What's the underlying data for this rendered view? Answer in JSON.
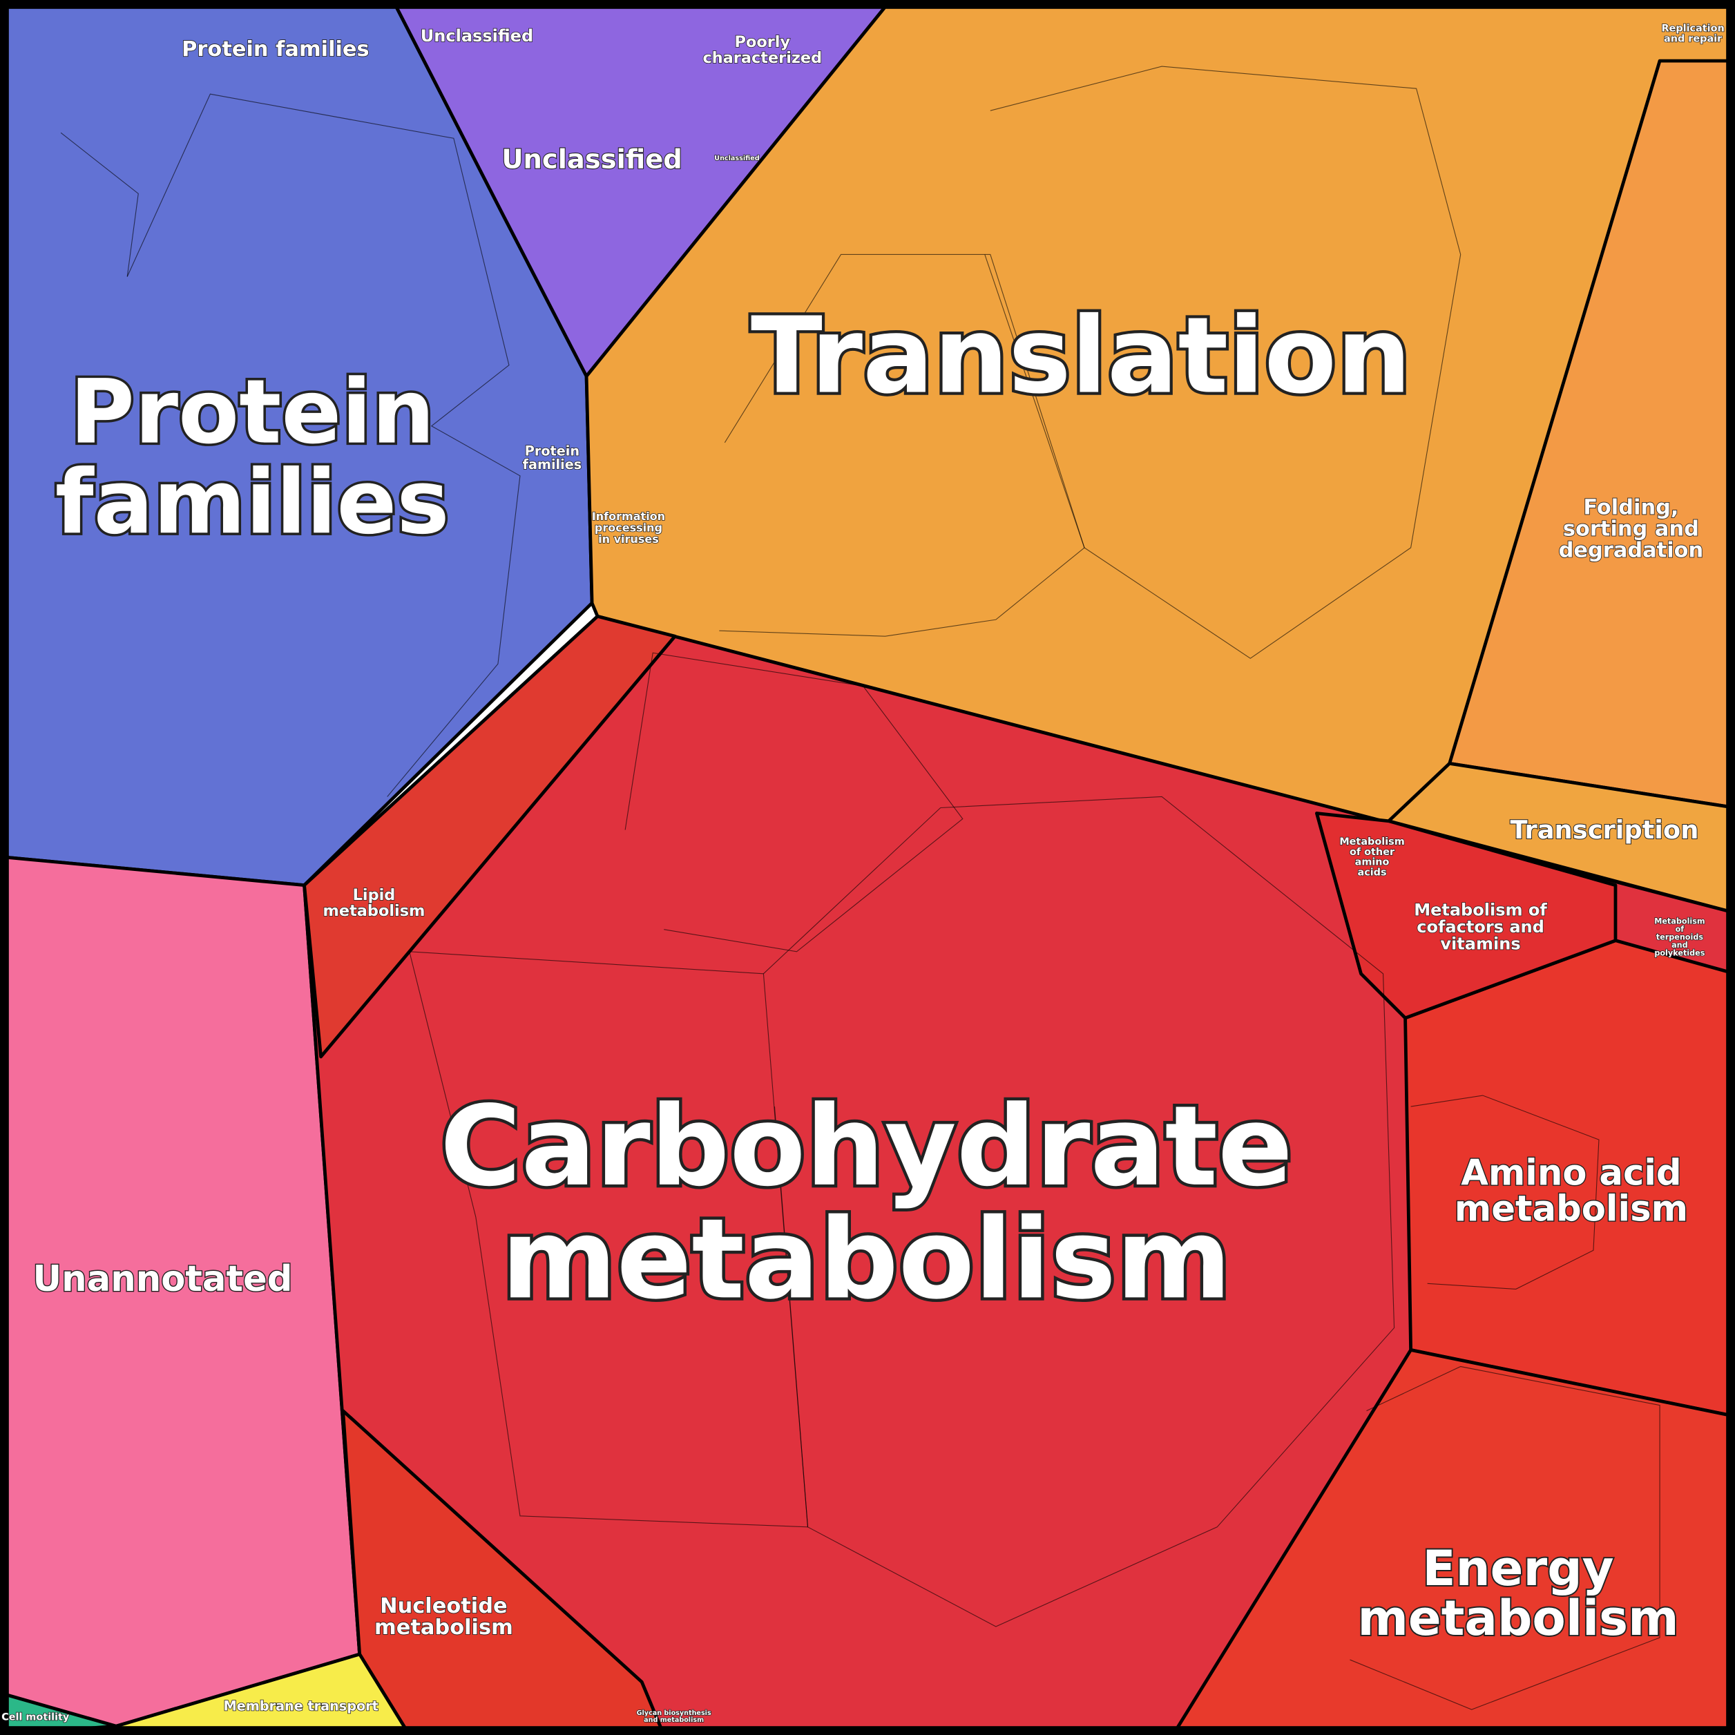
{
  "regions": [
    {
      "lines": [
        "Protein families"
      ]
    },
    {
      "lines": [
        "Protein",
        "families"
      ]
    },
    {
      "lines": [
        "Protein",
        "families"
      ]
    },
    {
      "lines": [
        "Unclassified"
      ]
    },
    {
      "lines": [
        "Unclassified"
      ]
    },
    {
      "lines": [
        "Poorly",
        "characterized"
      ]
    },
    {
      "lines": [
        "Unclassified"
      ]
    },
    {
      "lines": [
        "Translation"
      ]
    },
    {
      "lines": [
        "Information",
        "processing",
        "in viruses"
      ]
    },
    {
      "lines": [
        "Folding,",
        "sorting and",
        "degradation"
      ]
    },
    {
      "lines": [
        "Replication",
        "and repair"
      ]
    },
    {
      "lines": [
        "Transcription"
      ]
    },
    {
      "lines": [
        "Carbohydrate",
        "metabolism"
      ]
    },
    {
      "lines": [
        "Amino acid",
        "metabolism"
      ]
    },
    {
      "lines": [
        "Energy",
        "metabolism"
      ]
    },
    {
      "lines": [
        "Metabolism of",
        "cofactors and",
        "vitamins"
      ]
    },
    {
      "lines": [
        "Metabolism",
        "of other",
        "amino",
        "acids"
      ]
    },
    {
      "lines": [
        "Metabolism",
        "of",
        "terpenoids",
        "and",
        "polyketides"
      ]
    },
    {
      "lines": [
        "Lipid",
        "metabolism"
      ]
    },
    {
      "lines": [
        "Nucleotide",
        "metabolism"
      ]
    },
    {
      "lines": [
        "Unannotated"
      ]
    },
    {
      "lines": [
        "Membrane transport"
      ]
    },
    {
      "lines": [
        "Cell motility"
      ]
    },
    {
      "lines": [
        "Glycan biosynthesis",
        "and metabolism"
      ]
    }
  ]
}
